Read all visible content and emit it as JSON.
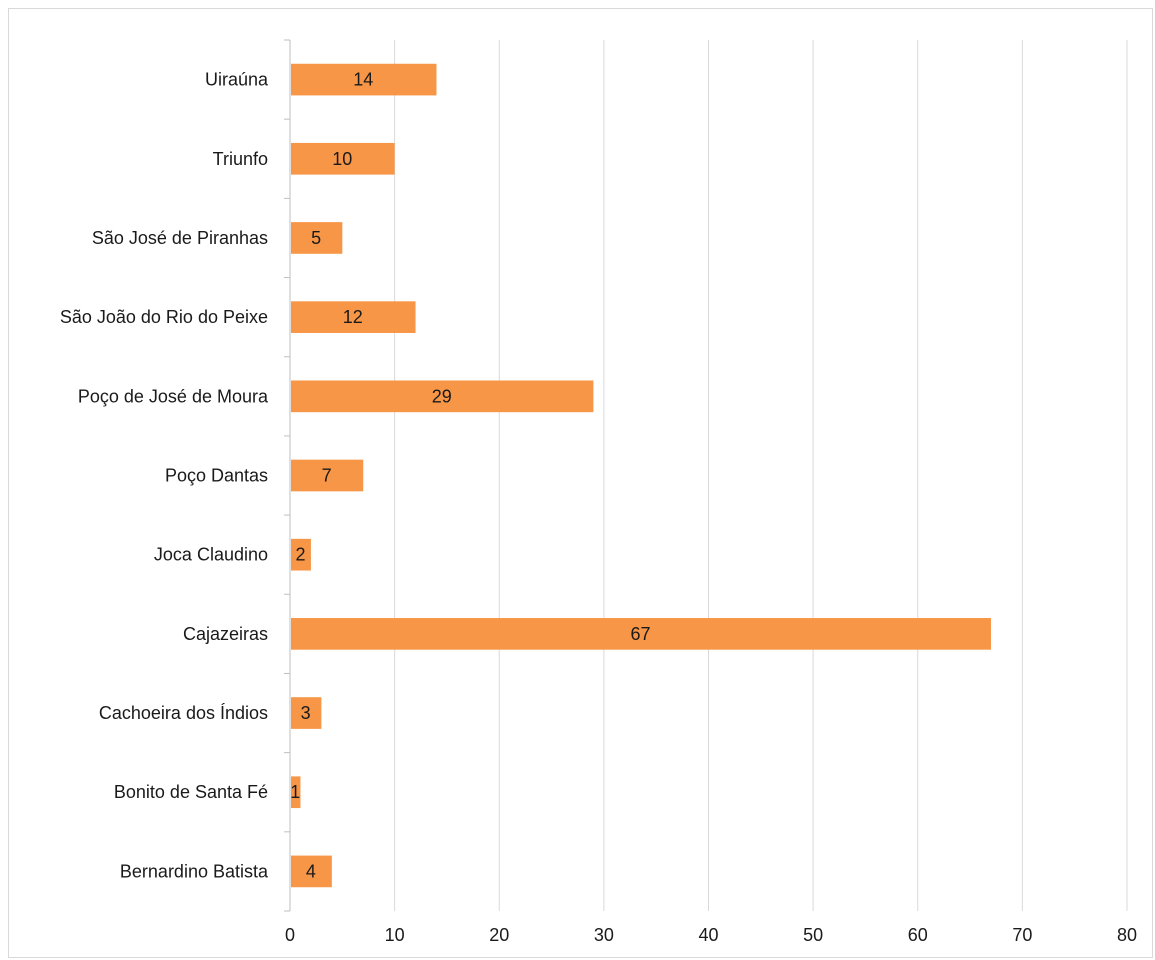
{
  "chart_data": {
    "type": "bar",
    "orientation": "horizontal",
    "title": "",
    "xlabel": "",
    "ylabel": "",
    "categories": [
      "Uiraúna",
      "Triunfo",
      "São José de Piranhas",
      "São João do Rio do Peixe",
      "Poço de José de Moura",
      "Poço Dantas",
      "Joca Claudino",
      "Cajazeiras",
      "Cachoeira dos Índios",
      "Bonito de Santa Fé",
      "Bernardino Batista"
    ],
    "values": [
      14,
      10,
      5,
      12,
      29,
      7,
      2,
      67,
      3,
      1,
      4
    ],
    "xlim": [
      0,
      80
    ],
    "xticks": [
      0,
      10,
      20,
      30,
      40,
      50,
      60,
      70,
      80
    ],
    "grid": true,
    "legend": "none",
    "data_labels": true,
    "colors": {
      "bar": "#F79646",
      "grid": "#d9d9d9",
      "axis": "#bfbfbf"
    }
  }
}
